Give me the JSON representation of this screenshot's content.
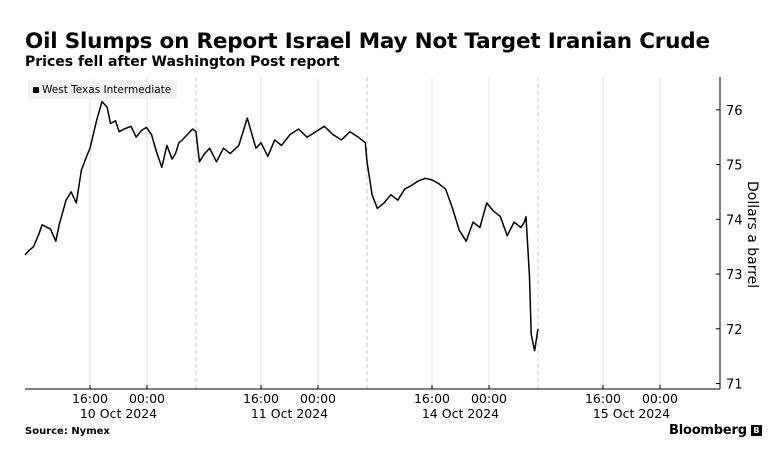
{
  "header": {
    "title": "Oil Slumps on Report Israel May Not Target Iranian Crude",
    "subtitle": "Prices fell after Washington Post report"
  },
  "footer": {
    "source": "Source: Nymex",
    "brand": "Bloomberg",
    "brand_icon": "bloomberg-terminal-icon"
  },
  "chart_data": {
    "type": "line",
    "title": "Oil Slumps on Report Israel May Not Target Iranian Crude",
    "subtitle": "Prices fell after Washington Post report",
    "ylabel": "Dollars a barrel",
    "ylim": [
      70.9,
      76.6
    ],
    "yticks": [
      71,
      72,
      73,
      74,
      75,
      76
    ],
    "grid": true,
    "legend_position": "top-left",
    "x_ticks": [
      "16:00",
      "00:00",
      "16:00",
      "00:00",
      "16:00",
      "00:00",
      "16:00",
      "00:00"
    ],
    "day_labels": [
      "10 Oct 2024",
      "11 Oct 2024",
      "14 Oct 2024",
      "15 Oct 2024"
    ],
    "session_columns": 4,
    "series": [
      {
        "name": "West Texas Intermediate",
        "color": "#000000",
        "x": [
          0,
          0.02,
          0.05,
          0.08,
          0.1,
          0.15,
          0.18,
          0.2,
          0.24,
          0.27,
          0.3,
          0.33,
          0.36,
          0.38,
          0.42,
          0.45,
          0.48,
          0.5,
          0.53,
          0.55,
          0.58,
          0.62,
          0.65,
          0.68,
          0.71,
          0.74,
          0.77,
          0.8,
          0.83,
          0.86,
          0.88,
          0.9,
          0.92,
          0.95,
          0.98,
          1.0,
          1.02,
          1.05,
          1.08,
          1.12,
          1.16,
          1.2,
          1.25,
          1.3,
          1.35,
          1.38,
          1.42,
          1.46,
          1.5,
          1.55,
          1.6,
          1.65,
          1.7,
          1.75,
          1.8,
          1.85,
          1.9,
          1.95,
          1.99,
          2.0,
          2.03,
          2.06,
          2.1,
          2.14,
          2.18,
          2.22,
          2.26,
          2.3,
          2.34,
          2.38,
          2.42,
          2.46,
          2.5,
          2.54,
          2.58,
          2.62,
          2.66,
          2.7,
          2.74,
          2.78,
          2.82,
          2.86,
          2.88,
          2.9,
          2.92,
          2.93,
          2.95,
          2.96,
          2.98,
          3.0
        ],
        "values": [
          73.35,
          73.42,
          73.5,
          73.72,
          73.9,
          73.82,
          73.6,
          73.9,
          74.35,
          74.5,
          74.3,
          74.9,
          75.15,
          75.3,
          75.82,
          76.15,
          76.05,
          75.75,
          75.8,
          75.6,
          75.65,
          75.7,
          75.5,
          75.62,
          75.68,
          75.55,
          75.22,
          74.95,
          75.35,
          75.1,
          75.2,
          75.4,
          75.45,
          75.55,
          75.65,
          75.6,
          75.05,
          75.2,
          75.3,
          75.05,
          75.3,
          75.2,
          75.35,
          75.85,
          75.3,
          75.4,
          75.15,
          75.45,
          75.35,
          75.55,
          75.65,
          75.5,
          75.6,
          75.7,
          75.55,
          75.45,
          75.6,
          75.5,
          75.4,
          75.05,
          74.45,
          74.2,
          74.3,
          74.45,
          74.35,
          74.55,
          74.62,
          74.7,
          74.75,
          74.72,
          74.65,
          74.55,
          74.2,
          73.8,
          73.6,
          73.95,
          73.85,
          74.3,
          74.15,
          74.05,
          73.7,
          73.95,
          73.9,
          73.85,
          73.95,
          74.05,
          72.95,
          71.9,
          71.6,
          72.0
        ]
      }
    ]
  }
}
